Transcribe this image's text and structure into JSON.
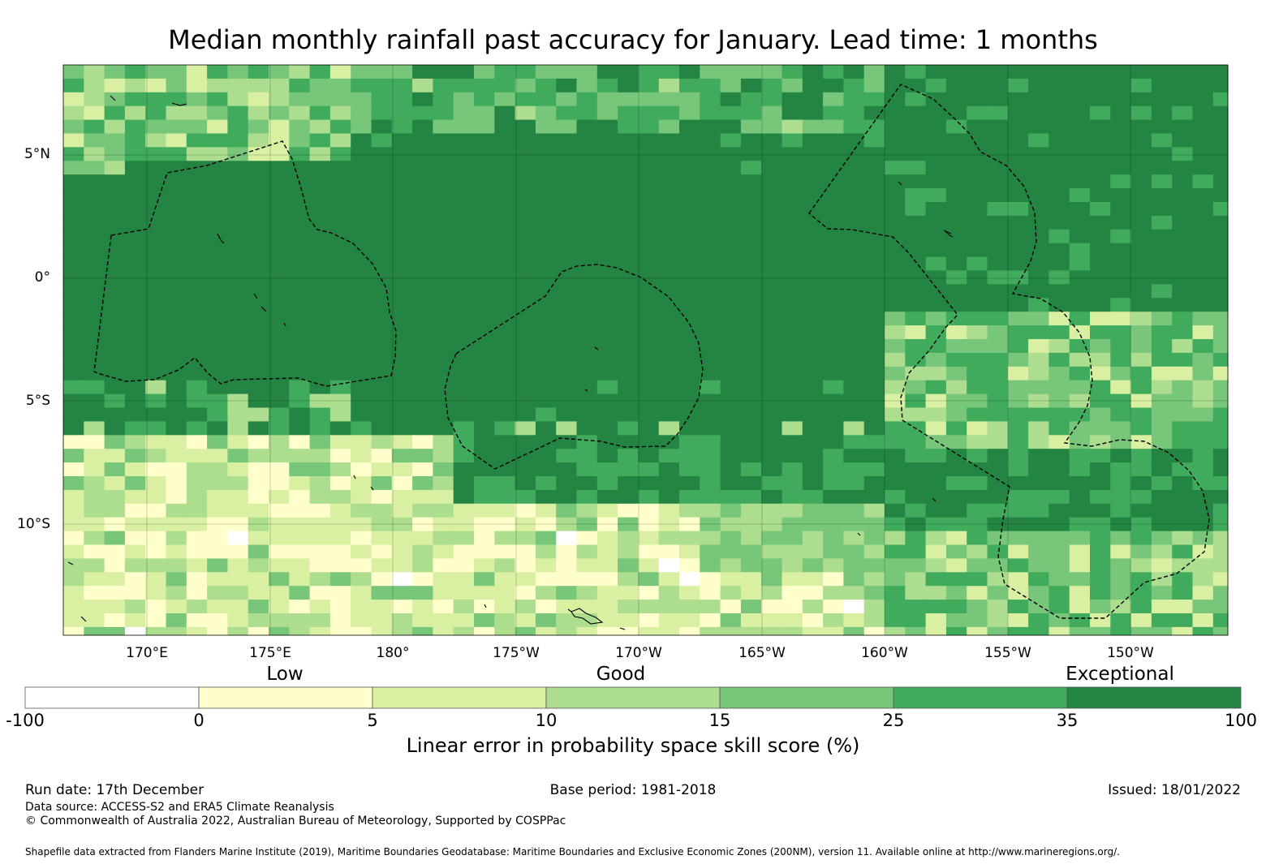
{
  "title": "Median monthly rainfall past accuracy for January. Lead time: 1 months",
  "map": {
    "lat_labels": [
      "5°N",
      "0°",
      "5°S",
      "10°S"
    ],
    "lon_labels": [
      "170°E",
      "175°E",
      "180°",
      "175°W",
      "170°W",
      "165°W",
      "160°W",
      "155°W",
      "150°W"
    ],
    "lon_range_deg_east": [
      166.6,
      213.9
    ],
    "lat_range_deg": [
      -14.5,
      8.7
    ],
    "grid_resolution_deg": 0.83,
    "land_icon": "island-outline-icon",
    "boundary_icon": "eez-dashed-boundary-icon"
  },
  "legend": {
    "categories": [
      "Low",
      "Good",
      "Exceptional"
    ],
    "ticks": [
      "-100",
      "0",
      "5",
      "10",
      "15",
      "25",
      "35",
      "100"
    ],
    "colors": [
      "#ffffff",
      "#ffffcc",
      "#d9f0a3",
      "#addd8e",
      "#78c679",
      "#41ab5d",
      "#238443"
    ],
    "title": "Linear error in probability space skill score (%)"
  },
  "footer": {
    "run_date": "Run date: 17th December",
    "base_period": "Base period: 1981-2018",
    "issued": "Issued: 18/01/2022",
    "data_source": "Data source: ACCESS-S2 and ERA5 Climate Reanalysis",
    "copyright": "© Commonwealth of Australia 2022, Australian Bureau of Meteorology, Supported by COSPPac",
    "shapefile": "Shapefile data extracted from Flanders Marine Institute (2019), Maritime Boundaries Geodatabase: Maritime Boundaries and Exclusive Economic Zones (200NM), version 11. Available online at http://www.marineregions.org/."
  }
}
